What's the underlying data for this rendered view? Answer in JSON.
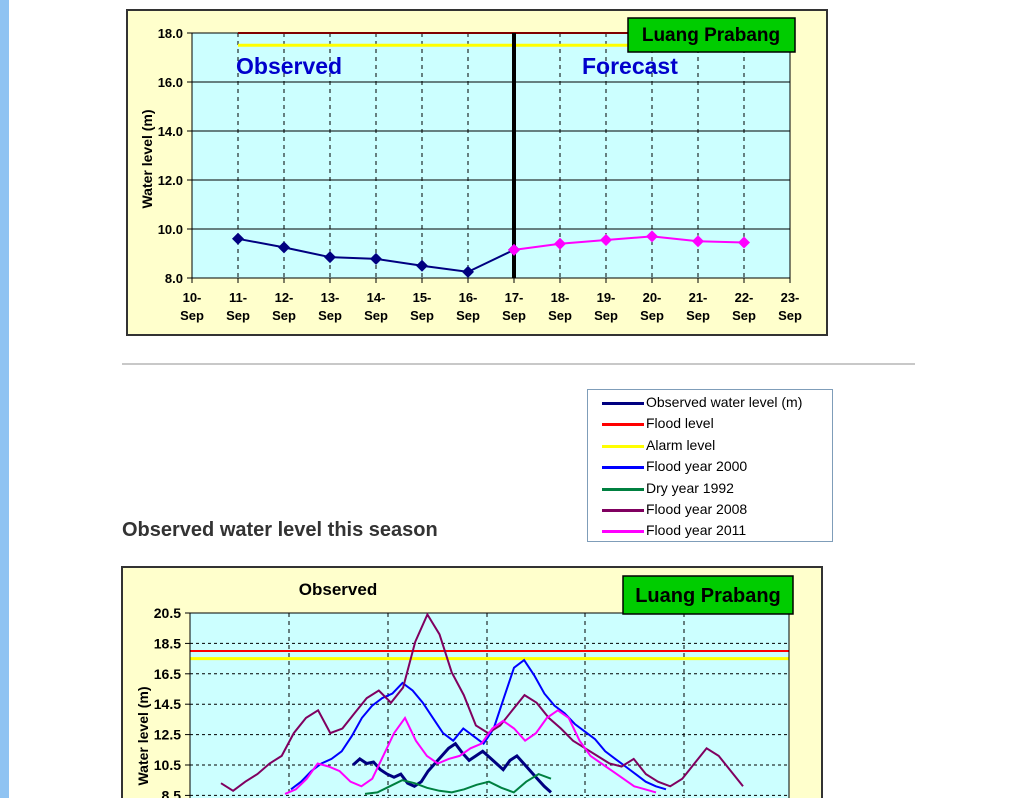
{
  "page": {
    "section_title": "Observed water level this season"
  },
  "legend": {
    "items": [
      {
        "label": "Observed water level (m)",
        "color": "#000080"
      },
      {
        "label": "Flood level",
        "color": "#ff0000"
      },
      {
        "label": "Alarm level",
        "color": "#ffff00"
      },
      {
        "label": "Flood year 2000",
        "color": "#0000ff"
      },
      {
        "label": "Dry year 1992",
        "color": "#008040"
      },
      {
        "label": "Flood year 2008",
        "color": "#800060"
      },
      {
        "label": "Flood year 2011",
        "color": "#ff00ff"
      }
    ]
  },
  "chart_data": [
    {
      "type": "line",
      "station": "Luang Prabang",
      "ylabel": "Water level (m)",
      "xlabel": "",
      "ylim": [
        8.0,
        18.0
      ],
      "yticks": [
        "8.0",
        "10.0",
        "12.0",
        "14.0",
        "16.0",
        "18.0"
      ],
      "x_ticks": [
        "10-Sep",
        "11-Sep",
        "12-Sep",
        "13-Sep",
        "14-Sep",
        "15-Sep",
        "16-Sep",
        "17-Sep",
        "18-Sep",
        "19-Sep",
        "20-Sep",
        "21-Sep",
        "22-Sep",
        "23-Sep"
      ],
      "annotations": {
        "observed": "Observed",
        "forecast": "Forecast"
      },
      "forecast_start": "17-Sep",
      "flood_level": 18.0,
      "alarm_level": 17.5,
      "colors": {
        "plot_bg": "#ccffff",
        "frame_bg": "#ffffcc",
        "observed": "#000080",
        "forecast": "#ff00ff",
        "flood": "#ff0000",
        "alarm": "#ffff00",
        "badge": "#00cc00"
      },
      "series": [
        {
          "name": "Observed",
          "x": [
            "11-Sep",
            "12-Sep",
            "13-Sep",
            "14-Sep",
            "15-Sep",
            "16-Sep",
            "17-Sep"
          ],
          "values": [
            9.6,
            9.25,
            8.85,
            8.78,
            8.5,
            8.25,
            9.15
          ]
        },
        {
          "name": "Forecast",
          "x": [
            "17-Sep",
            "18-Sep",
            "19-Sep",
            "20-Sep",
            "21-Sep",
            "22-Sep"
          ],
          "values": [
            9.15,
            9.4,
            9.55,
            9.7,
            9.5,
            9.45
          ]
        }
      ]
    },
    {
      "type": "line",
      "title": "Observed",
      "station": "Luang Prabang",
      "ylabel": "Water level (m)",
      "ylim": [
        8.5,
        20.5
      ],
      "yticks": [
        "8.5",
        "10.5",
        "12.5",
        "14.5",
        "16.5",
        "18.5",
        "20.5"
      ],
      "flood_level": 18.0,
      "alarm_level": 17.5,
      "grid": true,
      "series": [
        {
          "name": "Observed water level (m)",
          "color": "#000080",
          "values": [
            10.5,
            10.9,
            10.6,
            10.7,
            10.2,
            9.9,
            9.7,
            9.9,
            9.3,
            9.1,
            9.4,
            10.1,
            10.6,
            11.1,
            11.6,
            11.9,
            11.3,
            10.8,
            11.1,
            11.4,
            11.0,
            10.6,
            10.2,
            10.8,
            11.1,
            10.6,
            10.1,
            9.6,
            9.1,
            8.7
          ]
        },
        {
          "name": "Flood year 2000",
          "color": "#0000ff",
          "values": [
            8.9,
            9.4,
            10.1,
            10.6,
            10.9,
            11.4,
            12.4,
            13.6,
            14.4,
            14.9,
            15.2,
            15.9,
            15.4,
            14.6,
            13.6,
            12.6,
            12.1,
            12.9,
            12.4,
            11.9,
            12.9,
            14.9,
            16.9,
            17.4,
            16.4,
            15.2,
            14.4,
            13.9,
            13.2,
            12.7,
            12.2,
            11.4,
            10.9,
            10.4,
            9.9,
            9.4,
            9.1,
            8.9
          ]
        },
        {
          "name": "Dry year 1992",
          "color": "#008040",
          "values": [
            8.6,
            8.7,
            9.1,
            9.5,
            9.3,
            9.0,
            8.8,
            8.7,
            8.9,
            9.2,
            9.4,
            9.0,
            8.7,
            9.4,
            9.9,
            9.6
          ]
        },
        {
          "name": "Flood year 2008",
          "color": "#800060",
          "values": [
            9.3,
            8.8,
            9.4,
            9.9,
            10.6,
            11.1,
            12.6,
            13.6,
            14.1,
            12.6,
            12.9,
            13.9,
            14.9,
            15.4,
            14.6,
            15.6,
            18.6,
            20.4,
            19.1,
            16.6,
            15.1,
            13.1,
            12.6,
            13.1,
            14.1,
            15.1,
            14.6,
            13.6,
            12.9,
            12.1,
            11.6,
            11.1,
            10.6,
            10.4,
            10.9,
            9.9,
            9.4,
            9.1,
            9.6,
            10.6,
            11.6,
            11.1,
            10.1,
            9.1
          ]
        },
        {
          "name": "Flood year 2011",
          "color": "#ff00ff",
          "values": [
            8.6,
            8.9,
            9.6,
            10.6,
            10.4,
            10.1,
            9.4,
            9.1,
            9.6,
            11.1,
            12.6,
            13.6,
            12.1,
            11.1,
            10.6,
            10.9,
            11.1,
            11.6,
            11.9,
            12.9,
            13.4,
            12.9,
            12.1,
            12.6,
            13.6,
            14.1,
            13.6,
            12.1,
            11.1,
            10.6,
            10.1,
            9.6,
            9.1,
            8.9,
            8.7
          ]
        }
      ]
    }
  ]
}
